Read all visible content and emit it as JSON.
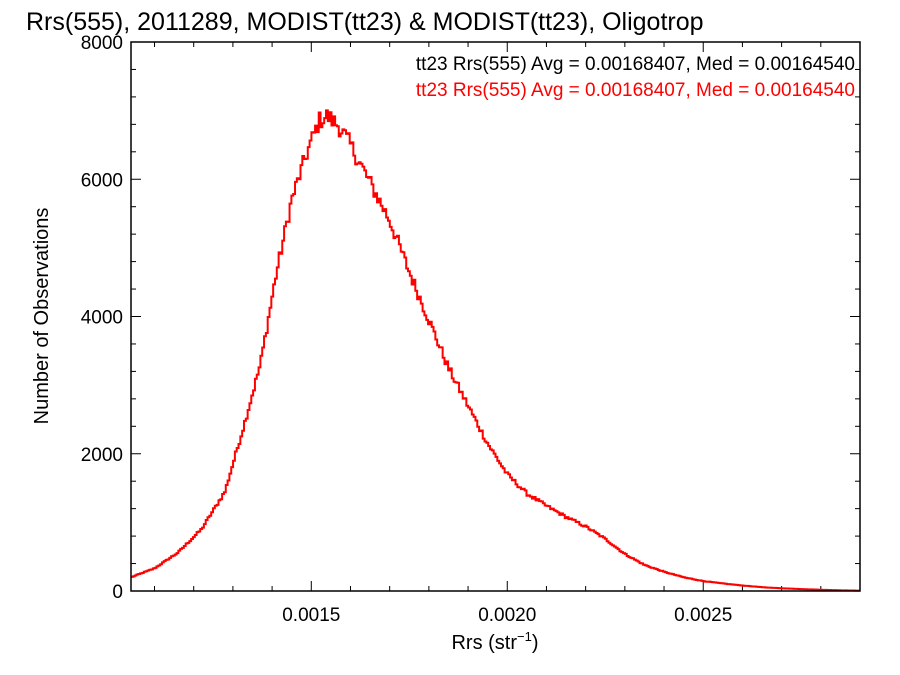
{
  "chart_data": {
    "type": "histogram-step",
    "title": "Rrs(555), 2011289, MODIST(tt23) & MODIST(tt23), Oligotrop",
    "xlabel_main": "Rrs (str",
    "xlabel_sup": "−1",
    "xlabel_end": ")",
    "ylabel": "Number of Observations",
    "xlim": [
      0.00104,
      0.0029
    ],
    "ylim": [
      0,
      8000
    ],
    "x_ticks": [
      {
        "value": 0.0015,
        "label": "0.0015"
      },
      {
        "value": 0.002,
        "label": "0.0020"
      },
      {
        "value": 0.0025,
        "label": "0.0025"
      }
    ],
    "y_ticks": [
      {
        "value": 0,
        "label": "0"
      },
      {
        "value": 2000,
        "label": "2000"
      },
      {
        "value": 4000,
        "label": "4000"
      },
      {
        "value": 6000,
        "label": "6000"
      },
      {
        "value": 8000,
        "label": "8000"
      }
    ],
    "legend": [
      {
        "text": "tt23 Rrs(555) Avg = 0.00168407, Med = 0.00164540",
        "color": "#000000"
      },
      {
        "text": "tt23 Rrs(555) Avg = 0.00168407, Med = 0.00164540",
        "color": "#ff0000"
      }
    ],
    "legend_position": "top-right",
    "series": [
      {
        "color": "#ff0000",
        "profile": [
          [
            0.00104,
            200
          ],
          [
            0.0011,
            330
          ],
          [
            0.00116,
            560
          ],
          [
            0.00122,
            900
          ],
          [
            0.00128,
            1450
          ],
          [
            0.00133,
            2450
          ],
          [
            0.00137,
            3300
          ],
          [
            0.00141,
            4600
          ],
          [
            0.00145,
            5700
          ],
          [
            0.00149,
            6400
          ],
          [
            0.00152,
            6850
          ],
          [
            0.00154,
            6920
          ],
          [
            0.00157,
            6780
          ],
          [
            0.0016,
            6500
          ],
          [
            0.00165,
            5950
          ],
          [
            0.0017,
            5400
          ],
          [
            0.00175,
            4650
          ],
          [
            0.0018,
            3950
          ],
          [
            0.00185,
            3250
          ],
          [
            0.0019,
            2700
          ],
          [
            0.00195,
            2150
          ],
          [
            0.002,
            1700
          ],
          [
            0.00205,
            1420
          ],
          [
            0.0021,
            1240
          ],
          [
            0.00215,
            1080
          ],
          [
            0.0022,
            940
          ],
          [
            0.00225,
            760
          ],
          [
            0.0023,
            540
          ],
          [
            0.00235,
            380
          ],
          [
            0.0024,
            280
          ],
          [
            0.00245,
            200
          ],
          [
            0.0025,
            145
          ],
          [
            0.00255,
            110
          ],
          [
            0.0026,
            80
          ],
          [
            0.00265,
            55
          ],
          [
            0.0027,
            40
          ],
          [
            0.00275,
            28
          ],
          [
            0.0028,
            18
          ],
          [
            0.00285,
            10
          ],
          [
            0.0029,
            5
          ]
        ],
        "bin_width": 4.65e-06,
        "noise_amplitude": 0.02
      }
    ]
  }
}
